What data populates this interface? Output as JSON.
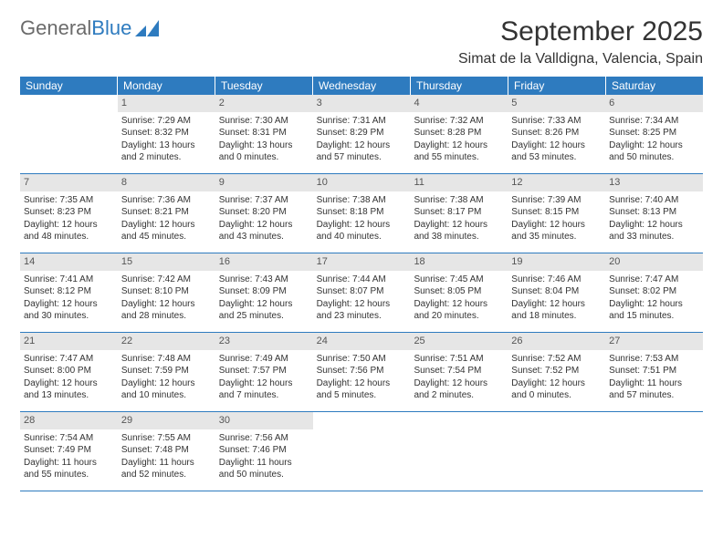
{
  "logo": {
    "text1": "General",
    "text2": "Blue"
  },
  "title": "September 2025",
  "location": "Simat de la Valldigna, Valencia, Spain",
  "colors": {
    "header_bg": "#2e7bbf",
    "header_text": "#ffffff",
    "daynum_bg": "#e6e6e6",
    "border": "#2e7bbf",
    "text": "#333333"
  },
  "weekdays": [
    "Sunday",
    "Monday",
    "Tuesday",
    "Wednesday",
    "Thursday",
    "Friday",
    "Saturday"
  ],
  "weeks": [
    [
      {
        "num": "",
        "lines": []
      },
      {
        "num": "1",
        "lines": [
          "Sunrise: 7:29 AM",
          "Sunset: 8:32 PM",
          "Daylight: 13 hours",
          "and 2 minutes."
        ]
      },
      {
        "num": "2",
        "lines": [
          "Sunrise: 7:30 AM",
          "Sunset: 8:31 PM",
          "Daylight: 13 hours",
          "and 0 minutes."
        ]
      },
      {
        "num": "3",
        "lines": [
          "Sunrise: 7:31 AM",
          "Sunset: 8:29 PM",
          "Daylight: 12 hours",
          "and 57 minutes."
        ]
      },
      {
        "num": "4",
        "lines": [
          "Sunrise: 7:32 AM",
          "Sunset: 8:28 PM",
          "Daylight: 12 hours",
          "and 55 minutes."
        ]
      },
      {
        "num": "5",
        "lines": [
          "Sunrise: 7:33 AM",
          "Sunset: 8:26 PM",
          "Daylight: 12 hours",
          "and 53 minutes."
        ]
      },
      {
        "num": "6",
        "lines": [
          "Sunrise: 7:34 AM",
          "Sunset: 8:25 PM",
          "Daylight: 12 hours",
          "and 50 minutes."
        ]
      }
    ],
    [
      {
        "num": "7",
        "lines": [
          "Sunrise: 7:35 AM",
          "Sunset: 8:23 PM",
          "Daylight: 12 hours",
          "and 48 minutes."
        ]
      },
      {
        "num": "8",
        "lines": [
          "Sunrise: 7:36 AM",
          "Sunset: 8:21 PM",
          "Daylight: 12 hours",
          "and 45 minutes."
        ]
      },
      {
        "num": "9",
        "lines": [
          "Sunrise: 7:37 AM",
          "Sunset: 8:20 PM",
          "Daylight: 12 hours",
          "and 43 minutes."
        ]
      },
      {
        "num": "10",
        "lines": [
          "Sunrise: 7:38 AM",
          "Sunset: 8:18 PM",
          "Daylight: 12 hours",
          "and 40 minutes."
        ]
      },
      {
        "num": "11",
        "lines": [
          "Sunrise: 7:38 AM",
          "Sunset: 8:17 PM",
          "Daylight: 12 hours",
          "and 38 minutes."
        ]
      },
      {
        "num": "12",
        "lines": [
          "Sunrise: 7:39 AM",
          "Sunset: 8:15 PM",
          "Daylight: 12 hours",
          "and 35 minutes."
        ]
      },
      {
        "num": "13",
        "lines": [
          "Sunrise: 7:40 AM",
          "Sunset: 8:13 PM",
          "Daylight: 12 hours",
          "and 33 minutes."
        ]
      }
    ],
    [
      {
        "num": "14",
        "lines": [
          "Sunrise: 7:41 AM",
          "Sunset: 8:12 PM",
          "Daylight: 12 hours",
          "and 30 minutes."
        ]
      },
      {
        "num": "15",
        "lines": [
          "Sunrise: 7:42 AM",
          "Sunset: 8:10 PM",
          "Daylight: 12 hours",
          "and 28 minutes."
        ]
      },
      {
        "num": "16",
        "lines": [
          "Sunrise: 7:43 AM",
          "Sunset: 8:09 PM",
          "Daylight: 12 hours",
          "and 25 minutes."
        ]
      },
      {
        "num": "17",
        "lines": [
          "Sunrise: 7:44 AM",
          "Sunset: 8:07 PM",
          "Daylight: 12 hours",
          "and 23 minutes."
        ]
      },
      {
        "num": "18",
        "lines": [
          "Sunrise: 7:45 AM",
          "Sunset: 8:05 PM",
          "Daylight: 12 hours",
          "and 20 minutes."
        ]
      },
      {
        "num": "19",
        "lines": [
          "Sunrise: 7:46 AM",
          "Sunset: 8:04 PM",
          "Daylight: 12 hours",
          "and 18 minutes."
        ]
      },
      {
        "num": "20",
        "lines": [
          "Sunrise: 7:47 AM",
          "Sunset: 8:02 PM",
          "Daylight: 12 hours",
          "and 15 minutes."
        ]
      }
    ],
    [
      {
        "num": "21",
        "lines": [
          "Sunrise: 7:47 AM",
          "Sunset: 8:00 PM",
          "Daylight: 12 hours",
          "and 13 minutes."
        ]
      },
      {
        "num": "22",
        "lines": [
          "Sunrise: 7:48 AM",
          "Sunset: 7:59 PM",
          "Daylight: 12 hours",
          "and 10 minutes."
        ]
      },
      {
        "num": "23",
        "lines": [
          "Sunrise: 7:49 AM",
          "Sunset: 7:57 PM",
          "Daylight: 12 hours",
          "and 7 minutes."
        ]
      },
      {
        "num": "24",
        "lines": [
          "Sunrise: 7:50 AM",
          "Sunset: 7:56 PM",
          "Daylight: 12 hours",
          "and 5 minutes."
        ]
      },
      {
        "num": "25",
        "lines": [
          "Sunrise: 7:51 AM",
          "Sunset: 7:54 PM",
          "Daylight: 12 hours",
          "and 2 minutes."
        ]
      },
      {
        "num": "26",
        "lines": [
          "Sunrise: 7:52 AM",
          "Sunset: 7:52 PM",
          "Daylight: 12 hours",
          "and 0 minutes."
        ]
      },
      {
        "num": "27",
        "lines": [
          "Sunrise: 7:53 AM",
          "Sunset: 7:51 PM",
          "Daylight: 11 hours",
          "and 57 minutes."
        ]
      }
    ],
    [
      {
        "num": "28",
        "lines": [
          "Sunrise: 7:54 AM",
          "Sunset: 7:49 PM",
          "Daylight: 11 hours",
          "and 55 minutes."
        ]
      },
      {
        "num": "29",
        "lines": [
          "Sunrise: 7:55 AM",
          "Sunset: 7:48 PM",
          "Daylight: 11 hours",
          "and 52 minutes."
        ]
      },
      {
        "num": "30",
        "lines": [
          "Sunrise: 7:56 AM",
          "Sunset: 7:46 PM",
          "Daylight: 11 hours",
          "and 50 minutes."
        ]
      },
      {
        "num": "",
        "lines": []
      },
      {
        "num": "",
        "lines": []
      },
      {
        "num": "",
        "lines": []
      },
      {
        "num": "",
        "lines": []
      }
    ]
  ]
}
